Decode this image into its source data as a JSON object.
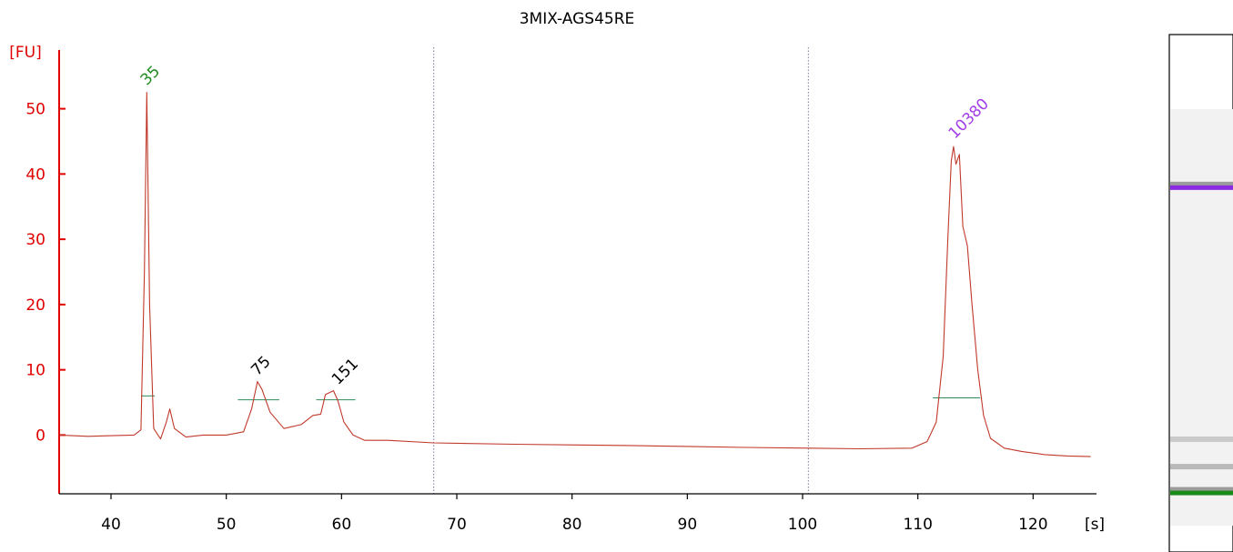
{
  "chart_data": {
    "type": "line",
    "title": "3MIX-AGS45RE",
    "xlabel": "[s]",
    "ylabel": "[FU]",
    "xlim": [
      35.5,
      125.5
    ],
    "ylim": [
      -9,
      59
    ],
    "x_ticks": [
      40,
      50,
      60,
      70,
      80,
      90,
      100,
      110,
      120
    ],
    "y_ticks": [
      0,
      10,
      20,
      30,
      40,
      50
    ],
    "grid": false,
    "axis_color": "#e00000",
    "line_color": "#c0392b",
    "guides": [
      68,
      100.5
    ],
    "series": [
      {
        "x": [
          35.5,
          38,
          40,
          42,
          42.6,
          42.9,
          43.1,
          43.35,
          43.7,
          44.3,
          44.8,
          45.1,
          45.5,
          46.5,
          48,
          50,
          51.5,
          52.2,
          52.7,
          53.1,
          53.8,
          55,
          56.5,
          57.5,
          58.2,
          58.6,
          59.3,
          59.7,
          60.2,
          61,
          62,
          64,
          68,
          75,
          85,
          95,
          100.5,
          105,
          109.5,
          110.8,
          111.6,
          112.2,
          112.6,
          112.9,
          113.1,
          113.3,
          113.6,
          113.9,
          114.3,
          114.7,
          115.2,
          115.7,
          116.3,
          117.5,
          119,
          121,
          123,
          125
        ],
        "y": [
          0,
          -0.2,
          -0.1,
          0,
          0.8,
          25,
          52.5,
          20,
          1,
          -0.6,
          2,
          4,
          1,
          -0.3,
          0,
          0,
          0.5,
          4,
          8.2,
          7,
          3.5,
          1,
          1.6,
          3,
          3.2,
          6.2,
          6.8,
          5.2,
          2,
          0,
          -0.8,
          -0.8,
          -1.2,
          -1.4,
          -1.6,
          -1.9,
          -2,
          -2.1,
          -2,
          -1,
          2,
          12,
          30,
          42,
          44.2,
          41.5,
          43,
          32,
          29,
          20,
          10,
          3,
          -0.5,
          -2,
          -2.5,
          -3,
          -3.2,
          -3.3
        ]
      }
    ],
    "baselines": [
      {
        "x1": 42.6,
        "x2": 43.8,
        "y": 6
      },
      {
        "x1": 51.0,
        "x2": 54.6,
        "y": 5.4
      },
      {
        "x1": 57.8,
        "x2": 61.2,
        "y": 5.4
      },
      {
        "x1": 111.3,
        "x2": 115.4,
        "y": 5.7
      }
    ],
    "peak_labels": [
      {
        "text": "35",
        "x": 43.1,
        "y": 53.5,
        "color": "#1f8a1f"
      },
      {
        "text": "75",
        "x": 52.7,
        "y": 9.0,
        "color": "#000000"
      },
      {
        "text": "151",
        "x": 59.7,
        "y": 7.6,
        "color": "#000000"
      },
      {
        "text": "10380",
        "x": 113.2,
        "y": 45.3,
        "color": "#a23ee8"
      }
    ],
    "gel_bands": [
      {
        "position": 0.295,
        "color": "#8a2be2",
        "intensity": 1.0
      },
      {
        "position": 0.782,
        "color": "#808080",
        "intensity": 0.35
      },
      {
        "position": 0.835,
        "color": "#808080",
        "intensity": 0.5
      },
      {
        "position": 0.885,
        "color": "#1a8a1a",
        "intensity": 1.0
      }
    ]
  }
}
